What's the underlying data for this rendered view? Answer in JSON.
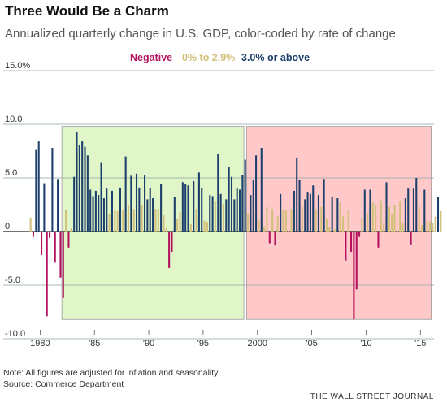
{
  "title": "Three Would Be a Charm",
  "subtitle": "Annualized quarterly change in U.S. GDP, color-coded by rate of change",
  "legend": [
    {
      "label": "Negative",
      "color": "#b3125f"
    },
    {
      "label": "0% to 2.9%",
      "color": "#d1c07a"
    },
    {
      "label": "3.0% or above",
      "color": "#1c3f6b"
    }
  ],
  "note": "Note: All figures are adjusted for inflation and seasonality",
  "source": "Source: Commerce Department",
  "publisher": "THE WALL STREET JOURNAL",
  "colors": {
    "negative": "#b3125f",
    "low": "#d1c07a",
    "high": "#1c3f6b",
    "shade_green": "#e0f5c8",
    "shade_red": "#ffc9c9",
    "grid": "#8fa3a3"
  },
  "chart_data": {
    "type": "bar",
    "xlabel": "",
    "ylabel": "",
    "ylim": [
      -10,
      15
    ],
    "yticks": [
      "15.0%",
      "10.0",
      "5.0",
      "0",
      "-5.0",
      "-10.0"
    ],
    "ytick_values": [
      15,
      10,
      5,
      0,
      -5,
      -10
    ],
    "xticks": [
      "1980",
      "'85",
      "'90",
      "'95",
      "2000",
      "'05",
      "'10",
      "'15"
    ],
    "xtick_values": [
      1980,
      1985,
      1990,
      1995,
      2000,
      2005,
      2010,
      2015
    ],
    "shaded_periods": [
      {
        "start": 1982.0,
        "end": 1998.75,
        "fill": "green"
      },
      {
        "start": 1999.0,
        "end": 2016.0,
        "fill": "red"
      }
    ],
    "start_quarter": "1979-Q1",
    "values": [
      1.3,
      -0.5,
      7.6,
      8.4,
      -2.2,
      4.5,
      -7.9,
      -0.6,
      7.8,
      -2.9,
      4.9,
      -4.3,
      -6.2,
      2.0,
      -1.5,
      0.3,
      5.1,
      9.3,
      8.1,
      8.4,
      7.9,
      7.1,
      3.9,
      3.3,
      3.8,
      3.4,
      6.4,
      3.1,
      4.0,
      1.6,
      3.8,
      2.0,
      1.9,
      4.1,
      2.0,
      7.0,
      2.5,
      5.2,
      2.1,
      5.4,
      4.1,
      2.5,
      5.3,
      3.0,
      4.1,
      3.1,
      2.1,
      2.1,
      4.4,
      1.5,
      0.3,
      -3.4,
      -1.9,
      3.2,
      1.2,
      1.8,
      4.6,
      4.4,
      4.3,
      0.7,
      4.7,
      2.1,
      5.5,
      4.1,
      1.0,
      0.9,
      3.4,
      3.3,
      2.8,
      7.2,
      3.5,
      2.6,
      3.0,
      6.0,
      5.1,
      3.0,
      4.0,
      3.9,
      5.3,
      6.7,
      1.6,
      3.4,
      4.8,
      7.1,
      1.1,
      7.8,
      0.5,
      2.3,
      -1.1,
      2.1,
      -1.3,
      1.4,
      3.5,
      2.1,
      2.0,
      0.1,
      2.1,
      3.8,
      6.9,
      4.8,
      2.3,
      3.0,
      3.7,
      3.5,
      4.3,
      2.1,
      3.4,
      2.3,
      4.9,
      1.2,
      0.4,
      3.2,
      0.2,
      3.1,
      2.7,
      1.4,
      -2.7,
      2.0,
      -1.9,
      -8.2,
      -5.4,
      -0.5,
      1.3,
      3.9,
      1.7,
      3.9,
      2.7,
      2.5,
      -1.5,
      2.9,
      0.8,
      4.6,
      2.3,
      1.6,
      2.5,
      0.1,
      2.8,
      0.8,
      3.1,
      4.0,
      -1.2,
      4.0,
      5.0,
      2.3,
      0.6,
      3.9,
      1.0,
      0.9,
      0.8,
      1.4,
      3.2,
      1.9
    ]
  }
}
